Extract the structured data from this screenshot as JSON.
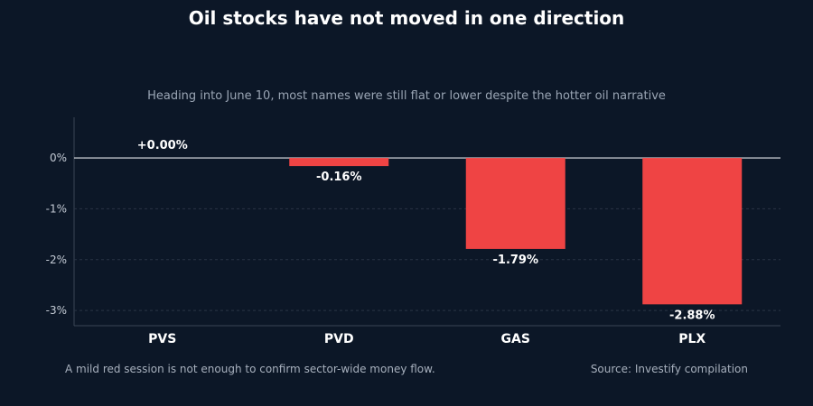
{
  "title": "Oil stocks have not moved in one direction",
  "subtitle": "Heading into June 10, most names were still flat or lower despite the hotter oil narrative",
  "footnote": "A mild red session is not enough to confirm sector-wide money flow.",
  "source": "Source: Investify compilation",
  "colors": {
    "background": "#0c1727",
    "bar": "#ef4444",
    "zero_line": "#e5e7eb",
    "grid": "#2a3546"
  },
  "chart_data": {
    "type": "bar",
    "categories": [
      "PVS",
      "PVD",
      "GAS",
      "PLX"
    ],
    "values": [
      0.0,
      -0.16,
      -1.79,
      -2.88
    ],
    "data_labels": [
      "+0.00%",
      "-0.16%",
      "-1.79%",
      "-2.88%"
    ],
    "y_ticks": [
      0,
      -1,
      -2,
      -3
    ],
    "y_tick_labels": [
      "0%",
      "-1%",
      "-2%",
      "-3%"
    ],
    "ylim": [
      -3.3,
      0.8
    ],
    "grid": true
  }
}
